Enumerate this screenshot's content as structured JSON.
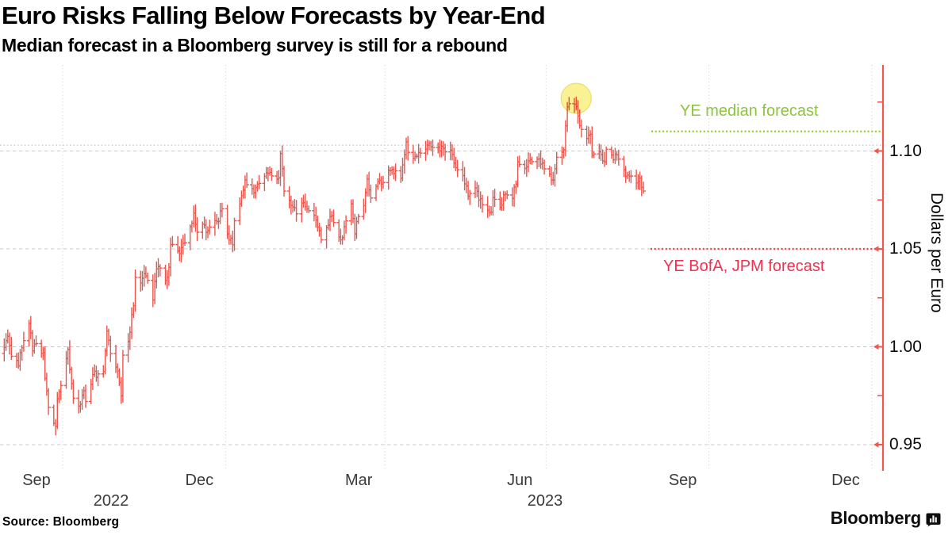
{
  "chart_data": {
    "type": "hlc-bar",
    "title": "Euro Risks Falling Below Forecasts by Year-End",
    "subtitle": "Median forecast in a Bloomberg survey is still for a rebound",
    "ylabel": "Dollars per Euro",
    "grid": true,
    "legend": "none",
    "x_axis": {
      "tick_labels": [
        "Sep",
        "Dec",
        "Mar",
        "Jun",
        "Sep",
        "Dec"
      ],
      "gridline_dates": [
        "2022-10-01",
        "2023-01-01",
        "2023-04-01",
        "2023-07-01",
        "2023-10-01",
        "2024-01-01"
      ],
      "year_labels": [
        {
          "text": "2022",
          "x": 140
        },
        {
          "text": "2023",
          "x": 687
        }
      ],
      "visible_range": [
        "2022-08-26",
        "2024-01-07"
      ]
    },
    "y_axis": {
      "side": "right",
      "ticks": [
        0.95,
        1.0,
        1.05,
        1.1
      ],
      "tick_labels": [
        "0.95",
        "1.00",
        "1.05",
        "1.10"
      ],
      "minor_ticks": [
        0.975,
        1.025,
        1.075,
        1.125
      ],
      "range": [
        0.937,
        1.144
      ],
      "axis_color": "#f2574f"
    },
    "annotations": {
      "median_line": {
        "label": "YE median forecast",
        "value": 1.11,
        "color": "#8cc43c",
        "line_color": "#9cca44",
        "style": "dotted"
      },
      "bank_line": {
        "label": "YE BofA, JPM forecast",
        "value": 1.05,
        "color": "#f0314e",
        "line_color": "#f04050",
        "style": "dotted"
      },
      "reference_line": {
        "value": 1.103,
        "color": "#c6c6c6",
        "style": "dotted"
      },
      "highlight_circle": {
        "date": "2023-07-18",
        "value": 1.1269,
        "radius": 19,
        "fill": "#faf08c",
        "stroke": "#e8dc5a"
      }
    },
    "series": {
      "name": "Dollars per Euro",
      "color": "#e8564e",
      "points_format": [
        "date",
        "close"
      ],
      "points": [
        [
          "2022-08-26",
          0.9966
        ],
        [
          "2022-08-29",
          0.9997
        ],
        [
          "2022-08-31",
          1.0054
        ],
        [
          "2022-09-02",
          0.9952
        ],
        [
          "2022-09-06",
          0.9903
        ],
        [
          "2022-09-08",
          0.9995
        ],
        [
          "2022-09-12",
          1.0119
        ],
        [
          "2022-09-14",
          0.9979
        ],
        [
          "2022-09-16",
          1.0016
        ],
        [
          "2022-09-20",
          0.997
        ],
        [
          "2022-09-21",
          0.9838
        ],
        [
          "2022-09-23",
          0.969
        ],
        [
          "2022-09-26",
          0.9609
        ],
        [
          "2022-09-27",
          0.9594
        ],
        [
          "2022-09-28",
          0.9735
        ],
        [
          "2022-09-30",
          0.9802
        ],
        [
          "2022-10-04",
          0.9987
        ],
        [
          "2022-10-07",
          0.9737
        ],
        [
          "2022-10-11",
          0.9706
        ],
        [
          "2022-10-13",
          0.9775
        ],
        [
          "2022-10-14",
          0.9721
        ],
        [
          "2022-10-18",
          0.9858
        ],
        [
          "2022-10-21",
          0.9861
        ],
        [
          "2022-10-24",
          0.9873
        ],
        [
          "2022-10-26",
          1.008
        ],
        [
          "2022-10-28",
          0.9965
        ],
        [
          "2022-11-01",
          0.9876
        ],
        [
          "2022-11-03",
          0.9749
        ],
        [
          "2022-11-04",
          0.9957
        ],
        [
          "2022-11-08",
          1.0074
        ],
        [
          "2022-11-10",
          1.021
        ],
        [
          "2022-11-11",
          1.0354
        ],
        [
          "2022-11-14",
          1.0325
        ],
        [
          "2022-11-15",
          1.035
        ],
        [
          "2022-11-17",
          1.0362
        ],
        [
          "2022-11-21",
          1.0239
        ],
        [
          "2022-11-23",
          1.0398
        ],
        [
          "2022-11-25",
          1.0402
        ],
        [
          "2022-11-28",
          1.0339
        ],
        [
          "2022-11-30",
          1.0406
        ],
        [
          "2022-12-01",
          1.0522
        ],
        [
          "2022-12-05",
          1.049
        ],
        [
          "2022-12-07",
          1.0507
        ],
        [
          "2022-12-09",
          1.0531
        ],
        [
          "2022-12-13",
          1.0631
        ],
        [
          "2022-12-14",
          1.0683
        ],
        [
          "2022-12-16",
          1.0585
        ],
        [
          "2022-12-20",
          1.0622
        ],
        [
          "2022-12-22",
          1.0594
        ],
        [
          "2022-12-27",
          1.064
        ],
        [
          "2022-12-30",
          1.0705
        ],
        [
          "2023-01-03",
          1.0545
        ],
        [
          "2023-01-05",
          1.0521
        ],
        [
          "2023-01-06",
          1.0644
        ],
        [
          "2023-01-09",
          1.073
        ],
        [
          "2023-01-12",
          1.0852
        ],
        [
          "2023-01-17",
          1.0787
        ],
        [
          "2023-01-19",
          1.0831
        ],
        [
          "2023-01-23",
          1.087
        ],
        [
          "2023-01-26",
          1.0891
        ],
        [
          "2023-01-31",
          1.0863
        ],
        [
          "2023-02-01",
          1.0987
        ],
        [
          "2023-02-02",
          1.091
        ],
        [
          "2023-02-03",
          1.0795
        ],
        [
          "2023-02-08",
          1.0713
        ],
        [
          "2023-02-10",
          1.0679
        ],
        [
          "2023-02-14",
          1.0736
        ],
        [
          "2023-02-17",
          1.0695
        ],
        [
          "2023-02-21",
          1.0647
        ],
        [
          "2023-02-24",
          1.0546
        ],
        [
          "2023-02-27",
          1.0609
        ],
        [
          "2023-03-01",
          1.0666
        ],
        [
          "2023-03-03",
          1.0635
        ],
        [
          "2023-03-07",
          1.0546
        ],
        [
          "2023-03-10",
          1.0643
        ],
        [
          "2023-03-13",
          1.073
        ],
        [
          "2023-03-15",
          1.0577
        ],
        [
          "2023-03-17",
          1.0665
        ],
        [
          "2023-03-20",
          1.0721
        ],
        [
          "2023-03-22",
          1.0857
        ],
        [
          "2023-03-24",
          1.076
        ],
        [
          "2023-03-28",
          1.0845
        ],
        [
          "2023-03-31",
          1.0839
        ],
        [
          "2023-04-03",
          1.0901
        ],
        [
          "2023-04-05",
          1.0906
        ],
        [
          "2023-04-10",
          1.0861
        ],
        [
          "2023-04-13",
          1.1047
        ],
        [
          "2023-04-14",
          1.0993
        ],
        [
          "2023-04-18",
          1.0972
        ],
        [
          "2023-04-21",
          1.0989
        ],
        [
          "2023-04-26",
          1.104
        ],
        [
          "2023-04-28",
          1.1018
        ],
        [
          "2023-05-02",
          1.1
        ],
        [
          "2023-05-04",
          1.1014
        ],
        [
          "2023-05-08",
          1.1004
        ],
        [
          "2023-05-11",
          1.0915
        ],
        [
          "2023-05-15",
          1.0875
        ],
        [
          "2023-05-18",
          1.0769
        ],
        [
          "2023-05-22",
          1.0811
        ],
        [
          "2023-05-24",
          1.075
        ],
        [
          "2023-05-26",
          1.0725
        ],
        [
          "2023-05-31",
          1.0688
        ],
        [
          "2023-06-01",
          1.0762
        ],
        [
          "2023-06-05",
          1.0713
        ],
        [
          "2023-06-08",
          1.078
        ],
        [
          "2023-06-12",
          1.0758
        ],
        [
          "2023-06-14",
          1.083
        ],
        [
          "2023-06-15",
          1.0944
        ],
        [
          "2023-06-20",
          1.0919
        ],
        [
          "2023-06-22",
          1.0955
        ],
        [
          "2023-06-27",
          1.096
        ],
        [
          "2023-06-30",
          1.0909
        ],
        [
          "2023-07-05",
          1.0852
        ],
        [
          "2023-07-07",
          1.0968
        ],
        [
          "2023-07-11",
          1.1006
        ],
        [
          "2023-07-12",
          1.1129
        ],
        [
          "2023-07-13",
          1.1226
        ],
        [
          "2023-07-17",
          1.1239
        ],
        [
          "2023-07-18",
          1.1228
        ],
        [
          "2023-07-20",
          1.1129
        ],
        [
          "2023-07-24",
          1.1064
        ],
        [
          "2023-07-26",
          1.1086
        ],
        [
          "2023-07-27",
          1.0978
        ],
        [
          "2023-07-31",
          1.0996
        ],
        [
          "2023-08-03",
          1.0945
        ],
        [
          "2023-08-04",
          1.1009
        ],
        [
          "2023-08-08",
          1.0955
        ],
        [
          "2023-08-10",
          1.098
        ],
        [
          "2023-08-14",
          1.0904
        ],
        [
          "2023-08-16",
          1.0877
        ],
        [
          "2023-08-18",
          1.0872
        ],
        [
          "2023-08-22",
          1.0845
        ],
        [
          "2023-08-23",
          1.0861
        ],
        [
          "2023-08-25",
          1.0795
        ]
      ]
    }
  },
  "footer": {
    "source": "Source:  Bloomberg",
    "brand": "Bloomberg"
  }
}
